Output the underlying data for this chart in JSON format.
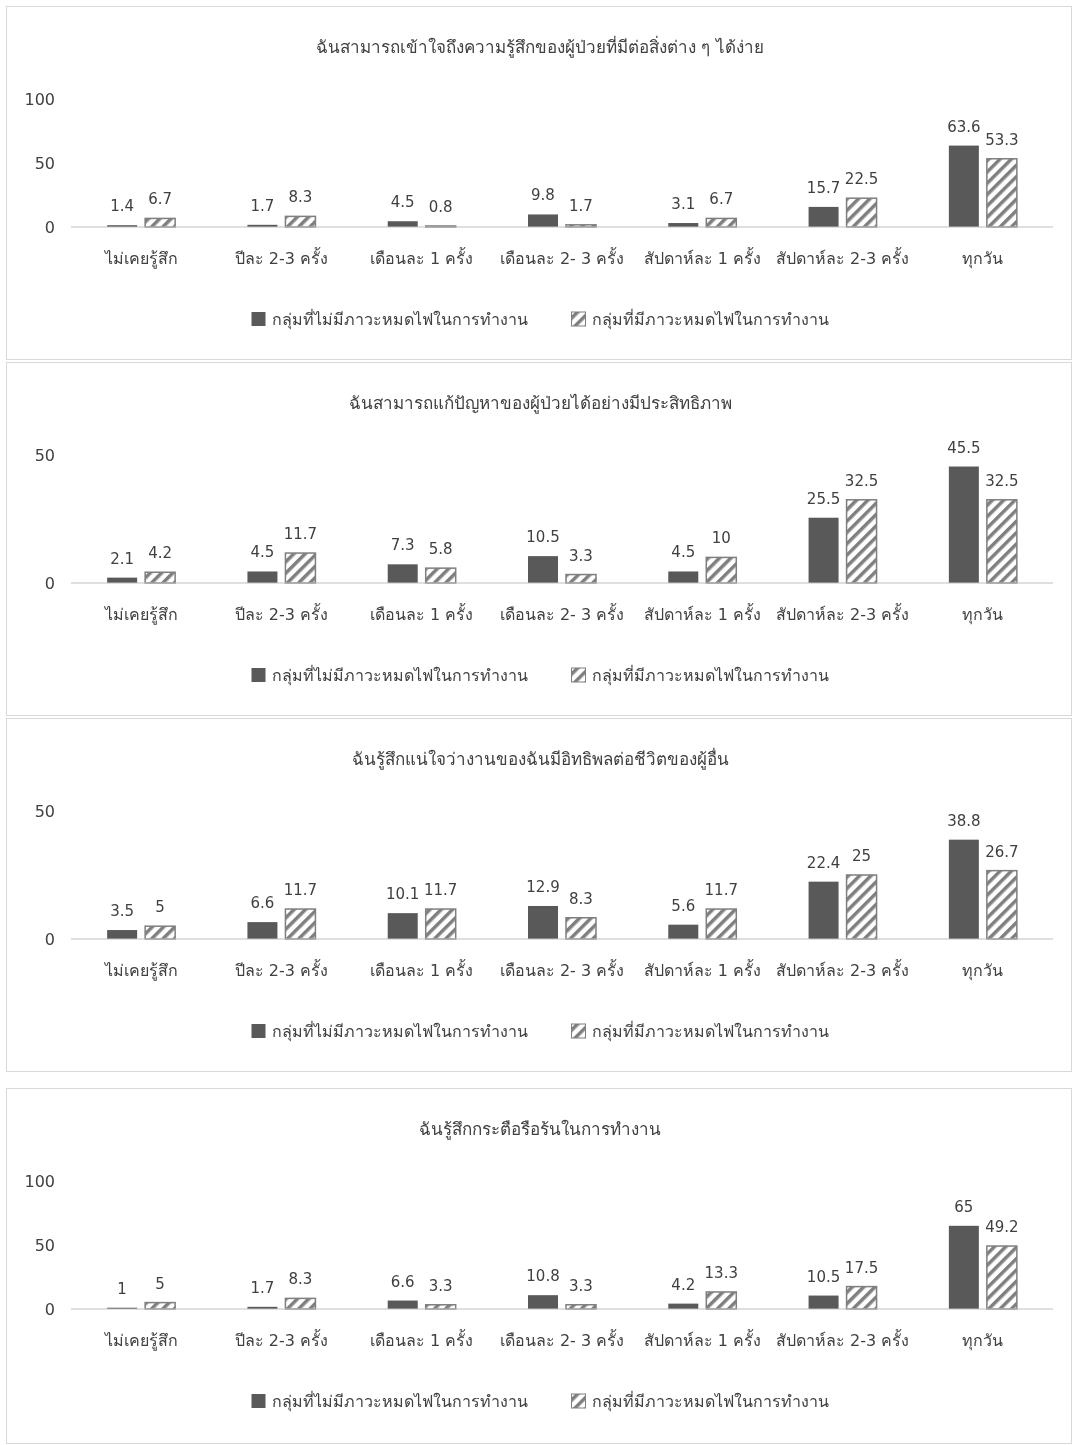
{
  "chart_data": [
    {
      "type": "bar",
      "title": "ฉันสามารถเข้าใจถึงความรู้สึกของผู้ป่วยที่มีต่อสิ่งต่าง ๆ ได้ง่าย",
      "categories": [
        "ไม่เคยรู้สึก",
        "ปีละ 2-3 ครั้ง",
        "เดือนละ 1 ครั้ง",
        "เดือนละ 2- 3 ครั้ง",
        "สัปดาห์ละ 1 ครั้ง",
        "สัปดาห์ละ 2-3 ครั้ง",
        "ทุกวัน"
      ],
      "ylim": [
        0,
        100
      ],
      "yticks": [
        0,
        50,
        100
      ],
      "data_labels": true,
      "legend": "bottom",
      "grid": false,
      "series": [
        {
          "name": "กลุ่มที่ไม่มีภาวะหมดไฟในการทำงาน",
          "color": "#595959",
          "values": [
            1.4,
            1.7,
            4.5,
            9.8,
            3.1,
            15.7,
            63.6
          ]
        },
        {
          "name": "กลุ่มที่มีภาวะหมดไฟในการทำงาน",
          "color": "#7f7f7f",
          "values": [
            6.7,
            8.3,
            0.8,
            1.7,
            6.7,
            22.5,
            53.3
          ]
        }
      ]
    },
    {
      "type": "bar",
      "title": "ฉันสามารถแก้ปัญหาของผู้ป่วยได้อย่างมีประสิทธิภาพ",
      "categories": [
        "ไม่เคยรู้สึก",
        "ปีละ 2-3 ครั้ง",
        "เดือนละ 1 ครั้ง",
        "เดือนละ 2- 3 ครั้ง",
        "สัปดาห์ละ 1 ครั้ง",
        "สัปดาห์ละ 2-3 ครั้ง",
        "ทุกวัน"
      ],
      "ylim": [
        0,
        50
      ],
      "yticks": [
        0,
        50
      ],
      "data_labels": true,
      "legend": "bottom",
      "grid": false,
      "series": [
        {
          "name": "กลุ่มที่ไม่มีภาวะหมดไฟในการทำงาน",
          "color": "#595959",
          "values": [
            2.1,
            4.5,
            7.3,
            10.5,
            4.5,
            25.5,
            45.5
          ]
        },
        {
          "name": "กลุ่มที่มีภาวะหมดไฟในการทำงาน",
          "color": "#7f7f7f",
          "values": [
            4.2,
            11.7,
            5.8,
            3.3,
            10,
            32.5,
            32.5
          ]
        }
      ]
    },
    {
      "type": "bar",
      "title": "ฉันรู้สึกแน่ใจว่างานของฉันมีอิทธิพลต่อชีวิตของผู้อื่น",
      "categories": [
        "ไม่เคยรู้สึก",
        "ปีละ 2-3 ครั้ง",
        "เดือนละ 1 ครั้ง",
        "เดือนละ 2- 3 ครั้ง",
        "สัปดาห์ละ 1 ครั้ง",
        "สัปดาห์ละ 2-3 ครั้ง",
        "ทุกวัน"
      ],
      "ylim": [
        0,
        50
      ],
      "yticks": [
        0,
        50
      ],
      "data_labels": true,
      "legend": "bottom",
      "grid": false,
      "series": [
        {
          "name": "กลุ่มที่ไม่มีภาวะหมดไฟในการทำงาน",
          "color": "#595959",
          "values": [
            3.5,
            6.6,
            10.1,
            12.9,
            5.6,
            22.4,
            38.8
          ]
        },
        {
          "name": "กลุ่มที่มีภาวะหมดไฟในการทำงาน",
          "color": "#7f7f7f",
          "values": [
            5,
            11.7,
            11.7,
            8.3,
            11.7,
            25,
            26.7
          ]
        }
      ]
    },
    {
      "type": "bar",
      "title": "ฉันรู้สึกกระตือรือร้นในการทำงาน",
      "categories": [
        "ไม่เคยรู้สึก",
        "ปีละ 2-3 ครั้ง",
        "เดือนละ 1 ครั้ง",
        "เดือนละ 2- 3 ครั้ง",
        "สัปดาห์ละ 1 ครั้ง",
        "สัปดาห์ละ 2-3 ครั้ง",
        "ทุกวัน"
      ],
      "ylim": [
        0,
        100
      ],
      "yticks": [
        0,
        50,
        100
      ],
      "data_labels": true,
      "legend": "bottom",
      "grid": false,
      "series": [
        {
          "name": "กลุ่มที่ไม่มีภาวะหมดไฟในการทำงาน",
          "color": "#595959",
          "values": [
            1,
            1.7,
            6.6,
            10.8,
            4.2,
            10.5,
            65
          ]
        },
        {
          "name": "กลุ่มที่มีภาวะหมดไฟในการทำงาน",
          "color": "#7f7f7f",
          "values": [
            5,
            8.3,
            3.3,
            3.3,
            13.3,
            17.5,
            49.2
          ]
        }
      ]
    }
  ]
}
